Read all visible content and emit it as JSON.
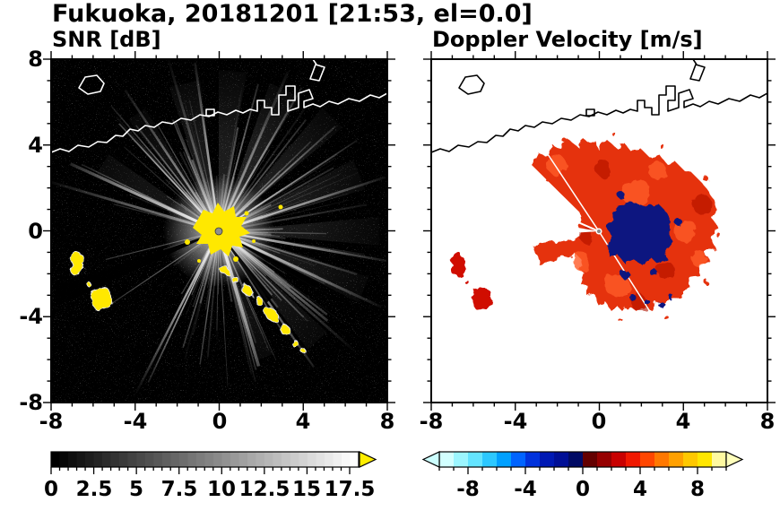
{
  "title": "Fukuoka, 20181201 [21:53, el=0.0]",
  "header": {
    "station": "Fukuoka",
    "date": "20181201",
    "time": "21:53",
    "elevation": "0.0"
  },
  "panels": {
    "snr": {
      "title": "SNR [dB]",
      "x_tick_labels": [
        "-8",
        "-4",
        "0",
        "4",
        "8"
      ],
      "y_tick_labels": [
        "8",
        "4",
        "0",
        "-4",
        "-8"
      ],
      "colorbar": {
        "tick_labels": [
          "0",
          "2.5",
          "5",
          "7.5",
          "10",
          "12.5",
          "15",
          "17.5"
        ],
        "colors": [
          "#000000",
          "#ffffff"
        ],
        "over_arrow_color": "#ffee00"
      }
    },
    "doppler": {
      "title": "Doppler Velocity [m/s]",
      "x_tick_labels": [
        "-8",
        "-4",
        "0",
        "4",
        "8"
      ],
      "colorbar": {
        "tick_labels": [
          "-8",
          "-4",
          "0",
          "4",
          "8"
        ],
        "colors": [
          "#d2ffff",
          "#9cf6ff",
          "#64e4ff",
          "#2cc8ff",
          "#00a0ff",
          "#0064ff",
          "#0032dc",
          "#0019b4",
          "#000f96",
          "#000a64",
          "#640000",
          "#960000",
          "#c80000",
          "#f01800",
          "#ff4600",
          "#ff7800",
          "#ffa000",
          "#ffc800",
          "#ffe600",
          "#fff9a0"
        ],
        "under_arrow_color": "#ccffff",
        "over_arrow_color": "#ffffbb"
      }
    }
  },
  "chart_data": [
    {
      "type": "heatmap",
      "title": "SNR [dB]",
      "variable": "radar signal-to-noise ratio",
      "units": "dB",
      "xlim": [
        -8,
        8
      ],
      "ylim": [
        -8,
        8
      ],
      "x_ticks": [
        -8,
        -4,
        0,
        4,
        8
      ],
      "y_ticks": [
        -8,
        -4,
        0,
        4,
        8
      ],
      "grid": false,
      "legend_position": "horizontal colorbar below",
      "colorbar": {
        "range": [
          0,
          18
        ],
        "ticks": [
          0,
          2.5,
          5,
          7.5,
          10,
          12.5,
          15,
          17.5
        ],
        "colormap": "grayscale black to white, yellow over-range arrow"
      },
      "features": [
        "radar at origin (0,0) marked with gray dot",
        "saturated yellow (>18 dB) echo cluster within ~1 unit of radar",
        "bright white radial SNR streaks fanning out in most azimuths, sparse toward the southwest blocked sector",
        "yellow island/terrain echoes near (-7,-2), (-6.5,-3.5) and a chain from (0.5,-2) to (4,-5.5) with white fringes",
        "white coastline overlay across the north with blocky port structures near (1.5,5.5)-(4,6.5) and an island near (-6,6.5)",
        "black speckled noise background elsewhere"
      ]
    },
    {
      "type": "heatmap",
      "title": "Doppler Velocity [m/s]",
      "variable": "Doppler velocity",
      "units": "m/s",
      "xlim": [
        -8,
        8
      ],
      "ylim": [
        -8,
        8
      ],
      "x_ticks": [
        -8,
        -4,
        0,
        4,
        8
      ],
      "y_ticks": [
        -8,
        -4,
        0,
        4,
        8
      ],
      "grid": false,
      "legend_position": "horizontal colorbar below",
      "colorbar": {
        "range": [
          -10,
          10
        ],
        "ticks": [
          -8,
          -4,
          0,
          4,
          8
        ],
        "colormap": "cyan-blue-navy for negative, dark red-red-orange-yellow for positive, arrows both ends"
      },
      "features": [
        "echo field around radar dominated by positive velocities ~+2 to +5 m/s (red/orange)",
        "navy negative-velocity patch (~-8 m/s) just east of the radar between (0.5,0.5) and (3.5,-1.5)",
        "red fan of echoes to the northwest and a broad ragged lobe east through southeast",
        "thin white shadow wedges from radar toward west and southeast",
        "small navy specks along the southeastern echo edge and isolated red echoes near (-7,-2) and (-6.5,-3.5)",
        "black coastline overlay on white (no-echo) background"
      ]
    }
  ]
}
